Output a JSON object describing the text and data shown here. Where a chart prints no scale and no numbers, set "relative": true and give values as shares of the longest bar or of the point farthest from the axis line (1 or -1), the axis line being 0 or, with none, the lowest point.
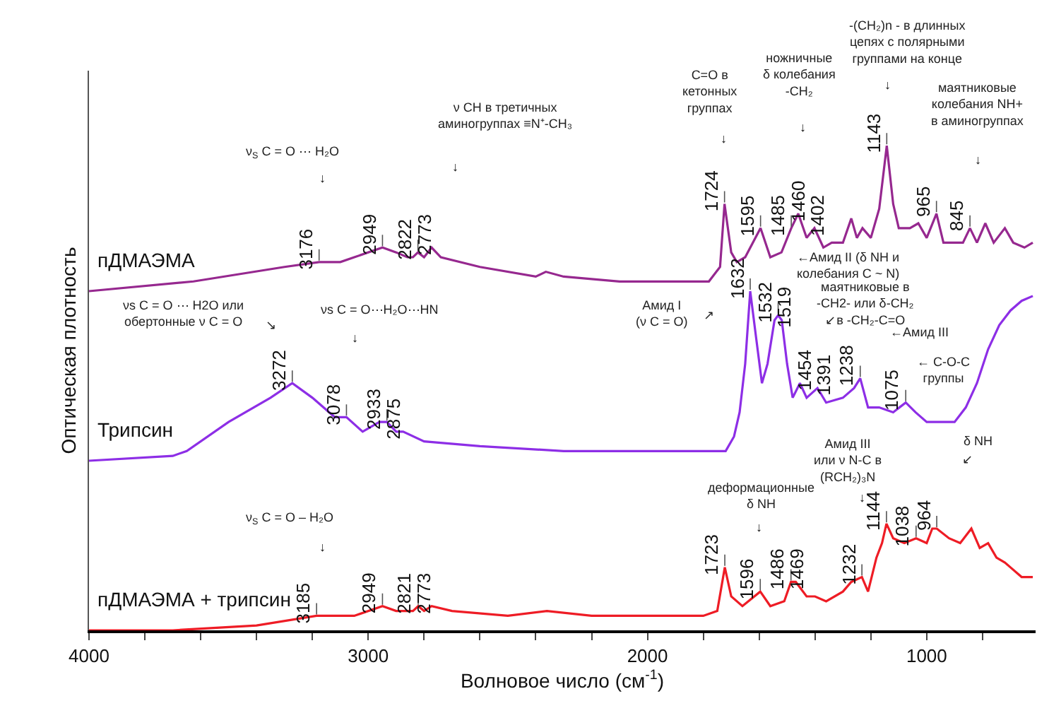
{
  "chart_data": {
    "type": "line",
    "relative": true,
    "xlabel": "Волновое число (см$^{-1}$)",
    "ylabel": "Оптическая плотность",
    "xlim": [
      4000,
      610
    ],
    "xticks": [
      4000,
      {
        "value": 3800,
        "label": null
      },
      {
        "value": 3600,
        "label": null
      },
      {
        "value": 3400,
        "label": null
      },
      {
        "value": 3200,
        "label": null
      },
      3000,
      {
        "value": 2800,
        "label": null
      },
      {
        "value": 2600,
        "label": null
      },
      {
        "value": 2400,
        "label": null
      },
      {
        "value": 2200,
        "label": null
      },
      2000,
      {
        "value": 1800,
        "label": null
      },
      {
        "value": 1600,
        "label": null
      },
      {
        "value": 1400,
        "label": null
      },
      {
        "value": 1200,
        "label": null
      },
      1000,
      {
        "value": 800,
        "label": null
      }
    ],
    "grid": false,
    "legend": false,
    "line_style": "solid",
    "series": [
      {
        "name": "пДМАЭМА",
        "color": "#96288f",
        "x": [
          4000,
          3626,
          3300,
          3176,
          3100,
          3050,
          2949,
          2900,
          2860,
          2840,
          2822,
          2800,
          2773,
          2740,
          2600,
          2400,
          2364,
          2300,
          2100,
          1900,
          1780,
          1740,
          1724,
          1700,
          1680,
          1650,
          1595,
          1560,
          1520,
          1485,
          1460,
          1430,
          1402,
          1370,
          1340,
          1300,
          1270,
          1250,
          1230,
          1200,
          1170,
          1143,
          1120,
          1100,
          1060,
          1030,
          1000,
          965,
          940,
          900,
          870,
          845,
          820,
          790,
          760,
          720,
          690,
          650,
          620
        ],
        "values": [
          0.7,
          0.72,
          0.75,
          0.76,
          0.76,
          0.77,
          0.79,
          0.78,
          0.77,
          0.77,
          0.78,
          0.77,
          0.79,
          0.77,
          0.75,
          0.73,
          0.74,
          0.73,
          0.72,
          0.72,
          0.72,
          0.75,
          0.88,
          0.78,
          0.76,
          0.77,
          0.83,
          0.77,
          0.78,
          0.83,
          0.86,
          0.81,
          0.83,
          0.79,
          0.8,
          0.8,
          0.85,
          0.81,
          0.83,
          0.81,
          0.87,
          1.0,
          0.88,
          0.83,
          0.83,
          0.84,
          0.81,
          0.86,
          0.8,
          0.8,
          0.8,
          0.83,
          0.8,
          0.84,
          0.8,
          0.83,
          0.8,
          0.79,
          0.8
        ]
      },
      {
        "name": "Трипсин",
        "color": "#8d2ee6",
        "x": [
          4000,
          3700,
          3650,
          3500,
          3350,
          3272,
          3200,
          3120,
          3078,
          3020,
          2960,
          2933,
          2900,
          2875,
          2800,
          2600,
          2300,
          2000,
          1800,
          1720,
          1690,
          1670,
          1650,
          1632,
          1610,
          1590,
          1570,
          1545,
          1532,
          1519,
          1500,
          1480,
          1454,
          1430,
          1391,
          1360,
          1300,
          1260,
          1238,
          1210,
          1170,
          1120,
          1075,
          1040,
          1000,
          950,
          900,
          860,
          820,
          780,
          740,
          700,
          660,
          620
        ],
        "values": [
          0.35,
          0.36,
          0.37,
          0.43,
          0.48,
          0.51,
          0.48,
          0.44,
          0.44,
          0.41,
          0.43,
          0.43,
          0.41,
          0.41,
          0.39,
          0.38,
          0.37,
          0.37,
          0.37,
          0.37,
          0.4,
          0.45,
          0.55,
          0.7,
          0.6,
          0.51,
          0.55,
          0.64,
          0.65,
          0.64,
          0.55,
          0.48,
          0.51,
          0.48,
          0.5,
          0.47,
          0.48,
          0.5,
          0.52,
          0.46,
          0.46,
          0.45,
          0.47,
          0.45,
          0.43,
          0.43,
          0.43,
          0.46,
          0.51,
          0.58,
          0.63,
          0.66,
          0.68,
          0.69
        ]
      },
      {
        "name": "пДМАЭМА + трипсин",
        "color": "#ee1c25",
        "x": [
          4000,
          3700,
          3400,
          3185,
          3050,
          2949,
          2900,
          2840,
          2821,
          2800,
          2773,
          2700,
          2500,
          2360,
          2200,
          2000,
          1800,
          1750,
          1723,
          1700,
          1660,
          1596,
          1560,
          1510,
          1486,
          1469,
          1430,
          1400,
          1360,
          1300,
          1270,
          1232,
          1210,
          1180,
          1160,
          1144,
          1120,
          1080,
          1038,
          1000,
          980,
          964,
          920,
          880,
          840,
          810,
          780,
          750,
          720,
          700,
          660,
          620
        ],
        "values": [
          0.0,
          0.0,
          0.01,
          0.03,
          0.03,
          0.05,
          0.04,
          0.04,
          0.05,
          0.04,
          0.05,
          0.04,
          0.03,
          0.04,
          0.03,
          0.03,
          0.03,
          0.04,
          0.13,
          0.07,
          0.05,
          0.08,
          0.05,
          0.06,
          0.1,
          0.1,
          0.07,
          0.07,
          0.06,
          0.08,
          0.1,
          0.11,
          0.08,
          0.15,
          0.18,
          0.22,
          0.19,
          0.18,
          0.19,
          0.18,
          0.21,
          0.21,
          0.19,
          0.18,
          0.21,
          0.17,
          0.18,
          0.15,
          0.14,
          0.13,
          0.11,
          0.11
        ]
      }
    ],
    "annotations": [
      {
        "text": "3176",
        "x": 3176,
        "y": 0.76
      },
      {
        "text": "2949",
        "x": 2949,
        "y": 0.79
      },
      {
        "text": "2822",
        "x": 2822,
        "y": 0.78
      },
      {
        "text": "2773",
        "x": 2773,
        "y": 0.79
      },
      {
        "text": "1724",
        "x": 1724,
        "y": 0.88
      },
      {
        "text": "1595",
        "x": 1595,
        "y": 0.83
      },
      {
        "text": "1485",
        "x": 1485,
        "y": 0.83
      },
      {
        "text": "1460",
        "x": 1460,
        "y": 0.86
      },
      {
        "text": "1402",
        "x": 1402,
        "y": 0.83
      },
      {
        "text": "1143",
        "x": 1143,
        "y": 1.0
      },
      {
        "text": "965",
        "x": 965,
        "y": 0.86
      },
      {
        "text": "845",
        "x": 845,
        "y": 0.83
      },
      {
        "text": "3272",
        "x": 3272,
        "y": 0.51
      },
      {
        "text": "3078",
        "x": 3078,
        "y": 0.44
      },
      {
        "text": "2933",
        "x": 2933,
        "y": 0.43
      },
      {
        "text": "2875",
        "x": 2875,
        "y": 0.41
      },
      {
        "text": "1632",
        "x": 1632,
        "y": 0.7
      },
      {
        "text": "1532",
        "x": 1532,
        "y": 0.65
      },
      {
        "text": "1519",
        "x": 1519,
        "y": 0.64
      },
      {
        "text": "1454",
        "x": 1454,
        "y": 0.51
      },
      {
        "text": "1391",
        "x": 1391,
        "y": 0.5
      },
      {
        "text": "1238",
        "x": 1238,
        "y": 0.52
      },
      {
        "text": "1075",
        "x": 1075,
        "y": 0.47
      },
      {
        "text": "3185",
        "x": 3185,
        "y": 0.03
      },
      {
        "text": "2949",
        "x": 2949,
        "y": 0.05
      },
      {
        "text": "2821",
        "x": 2821,
        "y": 0.05
      },
      {
        "text": "2773",
        "x": 2773,
        "y": 0.05
      },
      {
        "text": "1723",
        "x": 1723,
        "y": 0.13
      },
      {
        "text": "1596",
        "x": 1596,
        "y": 0.08
      },
      {
        "text": "1486",
        "x": 1486,
        "y": 0.1
      },
      {
        "text": "1469",
        "x": 1469,
        "y": 0.1
      },
      {
        "text": "1232",
        "x": 1232,
        "y": 0.11
      },
      {
        "text": "1144",
        "x": 1144,
        "y": 0.22
      },
      {
        "text": "1038",
        "x": 1038,
        "y": 0.19
      },
      {
        "text": "964",
        "x": 964,
        "y": 0.21
      },
      "ν$_{S}$ C = O ⋯ H₂O",
      "↓",
      "ν CH в третичных\nаминогруппах ≡N⁺-CH₃",
      "↓",
      "C=O в\nкетонных\nгруппах",
      "↓",
      "ножничные\nδ колебания\n-CH₂",
      "↓",
      "-(CH₂)n - в длинных\nцепях с полярными\nгруппами на конце",
      "↓",
      "маятниковые\nколебания NH+\nв аминогруппах",
      "↓",
      "←Амид II (δ NH и\nколебания C ~ N)",
      "маятниковые в\n-CH2- или δ-CH₂\n↙в -CH₂-C=O",
      "←Амид III",
      "← C-O-C\nгруппы",
      "Амид I\n(ν C = O)",
      "↗",
      "νs C = O ⋯ H2O или\nобертонные ν C = O",
      "↘",
      "νs C = O⋯H₂O⋯HN",
      "↓",
      "ν$_{S}$ C = O – H₂O",
      "↓",
      "деформационные\nδ NH",
      "↓",
      "Амид III\nили ν N-C в\n(RCH₂)₃N",
      "↓",
      "δ NH",
      "↙"
    ]
  }
}
